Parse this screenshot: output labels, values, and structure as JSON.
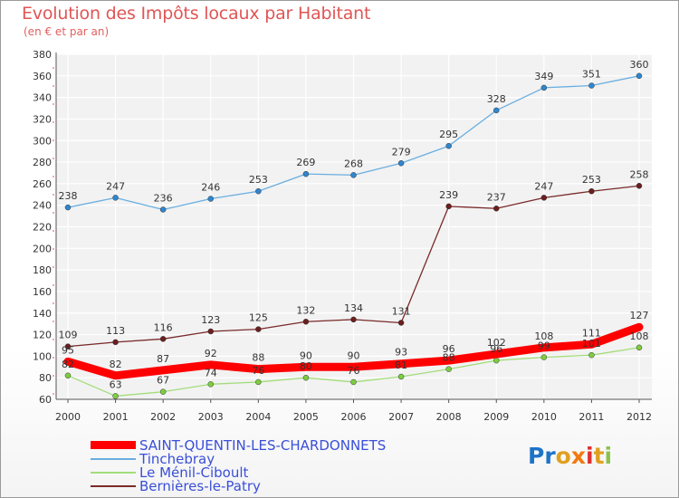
{
  "title": "Evolution des Impôts locaux par Habitant",
  "subtitle": "(en € et par an)",
  "logo_text": "Proxiti",
  "chart_data": {
    "type": "line",
    "title": "Evolution des Impôts locaux par Habitant",
    "subtitle": "(en € et par an)",
    "xlabel": "",
    "ylabel": "",
    "categories": [
      "2000",
      "2001",
      "2002",
      "2003",
      "2004",
      "2005",
      "2006",
      "2007",
      "2008",
      "2009",
      "2010",
      "2011",
      "2012"
    ],
    "ylim": [
      60,
      380
    ],
    "yticks": [
      60,
      80,
      100,
      120,
      140,
      160,
      180,
      200,
      220,
      240,
      260,
      280,
      300,
      320,
      340,
      360,
      380
    ],
    "grid": true,
    "legend_position": "bottom-left",
    "series": [
      {
        "name": "SAINT-QUENTIN-LES-CHARDONNETS",
        "color": "#ff0000",
        "point_color": "#ff0000",
        "values": [
          95,
          82,
          87,
          92,
          88,
          90,
          90,
          93,
          96,
          102,
          108,
          111,
          127
        ]
      },
      {
        "name": "Tinchebray",
        "color": "#6aaee0",
        "point_color": "#2f86cf",
        "values": [
          238,
          247,
          236,
          246,
          253,
          269,
          268,
          279,
          295,
          328,
          349,
          351,
          360
        ]
      },
      {
        "name": "Le Ménil-Ciboult",
        "color": "#a3dd7a",
        "point_color": "#7ccd40",
        "values": [
          82,
          63,
          67,
          74,
          76,
          80,
          76,
          81,
          88,
          96,
          99,
          101,
          108
        ]
      },
      {
        "name": "Bernières-le-Patry",
        "color": "#7a2a2a",
        "point_color": "#6b1f1f",
        "values": [
          109,
          113,
          116,
          123,
          125,
          132,
          134,
          131,
          239,
          237,
          247,
          253,
          258
        ]
      }
    ]
  }
}
